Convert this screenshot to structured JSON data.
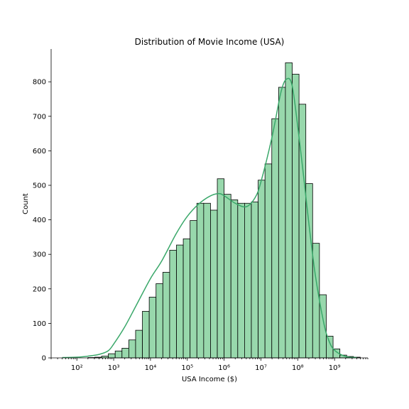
{
  "chart_data": {
    "type": "bar",
    "title": "Distribution of Movie Income (USA)",
    "xlabel": "USA Income ($)",
    "ylabel": "Count",
    "xscale": "log",
    "xlim": [
      20,
      8000000000
    ],
    "ylim": [
      0,
      895
    ],
    "yticks": [
      0,
      100,
      200,
      300,
      400,
      500,
      600,
      700,
      800
    ],
    "xticks": [
      {
        "value": 100,
        "label": "10²"
      },
      {
        "value": 1000,
        "label": "10³"
      },
      {
        "value": 10000,
        "label": "10⁴"
      },
      {
        "value": 100000,
        "label": "10⁵"
      },
      {
        "value": 1000000,
        "label": "10⁶"
      },
      {
        "value": 10000000,
        "label": "10⁷"
      },
      {
        "value": 100000000,
        "label": "10⁸"
      },
      {
        "value": 1000000000,
        "label": "10⁹"
      }
    ],
    "bins": {
      "start": 200,
      "end": 5000000000,
      "counts": [
        1,
        2,
        5,
        12,
        20,
        28,
        52,
        80,
        135,
        176,
        215,
        248,
        312,
        327,
        345,
        398,
        448,
        448,
        428,
        519,
        474,
        458,
        448,
        448,
        452,
        515,
        562,
        693,
        784,
        855,
        822,
        735,
        505,
        332,
        183,
        63,
        26,
        8,
        4,
        2
      ]
    },
    "kde": {
      "x": [
        40,
        100,
        200,
        400,
        700,
        1000,
        2000,
        4000,
        10000,
        20000,
        50000,
        100000,
        200000,
        400000,
        700000,
        1000000,
        2000000,
        4000000,
        7000000,
        10000000,
        20000000,
        35000000,
        50000000,
        70000000,
        100000000,
        150000000,
        200000000,
        300000000,
        500000000,
        700000000,
        1000000000,
        2000000000,
        4000000000
      ],
      "y": [
        1,
        2,
        5,
        10,
        20,
        40,
        90,
        150,
        230,
        280,
        360,
        410,
        445,
        468,
        476,
        470,
        448,
        438,
        465,
        510,
        640,
        770,
        808,
        790,
        670,
        510,
        390,
        240,
        105,
        50,
        22,
        4,
        1
      ]
    },
    "grid": false,
    "colors": {
      "bar": "#98d8ac",
      "kde": "#3aa86a",
      "edge": "#000000"
    }
  }
}
